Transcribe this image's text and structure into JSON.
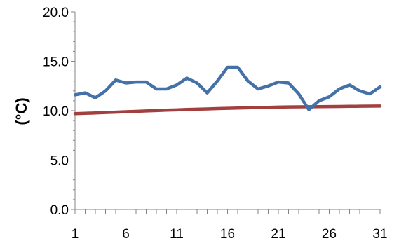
{
  "chart_data": {
    "type": "line",
    "title": "",
    "xlabel": "",
    "ylabel": "(°C)",
    "x": [
      1,
      2,
      3,
      4,
      5,
      6,
      7,
      8,
      9,
      10,
      11,
      12,
      13,
      14,
      15,
      16,
      17,
      18,
      19,
      20,
      21,
      22,
      23,
      24,
      25,
      26,
      27,
      28,
      29,
      30,
      31
    ],
    "x_ticks": [
      "1",
      "6",
      "11",
      "16",
      "21",
      "26",
      "31"
    ],
    "y_ticks": [
      "0.0",
      "5.0",
      "10.0",
      "15.0",
      "20.0"
    ],
    "ylim": [
      0,
      20
    ],
    "xlim": [
      1,
      31
    ],
    "grid": false,
    "series": [
      {
        "color": "#4472a8",
        "values": [
          11.6,
          11.8,
          11.3,
          12.0,
          13.1,
          12.8,
          12.9,
          12.9,
          12.2,
          12.2,
          12.6,
          13.3,
          12.8,
          11.8,
          13.0,
          14.4,
          14.4,
          13.0,
          12.2,
          12.5,
          12.9,
          12.8,
          11.7,
          10.1,
          11.0,
          11.4,
          12.2,
          12.6,
          12.0,
          11.7,
          12.4
        ]
      },
      {
        "color": "#a2403f",
        "values": [
          9.7,
          9.73,
          9.77,
          9.81,
          9.85,
          9.89,
          9.93,
          9.97,
          10.01,
          10.05,
          10.08,
          10.12,
          10.15,
          10.18,
          10.21,
          10.24,
          10.27,
          10.29,
          10.32,
          10.34,
          10.36,
          10.38,
          10.39,
          10.4,
          10.41,
          10.42,
          10.43,
          10.44,
          10.45,
          10.46,
          10.47
        ]
      }
    ]
  }
}
